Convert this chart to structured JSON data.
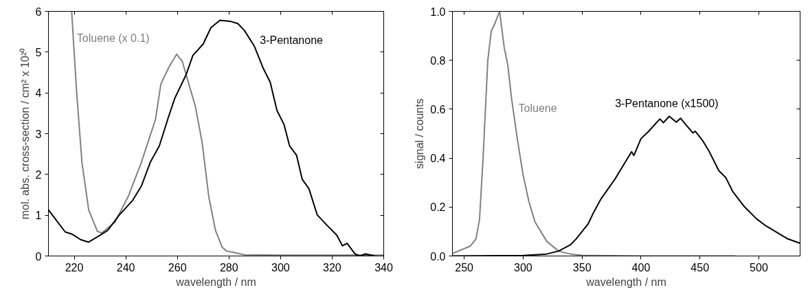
{
  "chart_data": [
    {
      "type": "line",
      "xlabel": "wavelength / nm",
      "ylabel": "mol. abs. cross-section / cm² x 10²⁰",
      "xlim": [
        210,
        340
      ],
      "ylim": [
        0,
        6
      ],
      "xticks": [
        220,
        240,
        260,
        280,
        300,
        320,
        340
      ],
      "yticks": [
        0,
        1,
        2,
        3,
        4,
        5,
        6
      ],
      "grid": false,
      "series": [
        {
          "name": "Toluene (x 0.1)",
          "color": "#808080",
          "x": [
            219,
            220.9,
            223,
            225.6,
            229,
            230.7,
            235.8,
            241,
            246,
            251.5,
            253.6,
            256.7,
            259.7,
            261.9,
            267,
            269.6,
            272.2,
            274.8,
            277.4,
            279.1,
            281.7,
            286,
            300,
            320,
            340
          ],
          "values": [
            6.0,
            4.05,
            2.29,
            1.13,
            0.6,
            0.57,
            0.83,
            1.47,
            2.29,
            3.35,
            4.22,
            4.63,
            4.95,
            4.77,
            3.66,
            2.78,
            1.44,
            0.62,
            0.21,
            0.12,
            0.09,
            0.03,
            0.02,
            0.02,
            0.02
          ]
        },
        {
          "name": "3-Pentanone",
          "color": "#000000",
          "x": [
            210,
            216.5,
            219,
            222.5,
            225.5,
            229,
            233,
            237.4,
            242.6,
            246,
            249.5,
            253,
            256.5,
            259,
            263.4,
            266,
            270,
            273,
            276.5,
            280.8,
            283.4,
            286,
            289.8,
            293.3,
            296,
            298.6,
            301.3,
            303.5,
            306.2,
            308.4,
            311,
            314.2,
            318.2,
            321.8,
            324,
            325.8,
            328.9,
            330.7,
            333,
            336.5
          ],
          "values": [
            1.13,
            0.59,
            0.54,
            0.4,
            0.34,
            0.47,
            0.63,
            1.0,
            1.36,
            1.71,
            2.3,
            2.7,
            3.4,
            3.87,
            4.45,
            4.92,
            5.2,
            5.6,
            5.78,
            5.75,
            5.7,
            5.53,
            5.15,
            4.6,
            4.26,
            3.57,
            3.23,
            2.7,
            2.47,
            1.88,
            1.65,
            1.01,
            0.74,
            0.51,
            0.25,
            0.31,
            0.05,
            0,
            0.05,
            0
          ]
        }
      ]
    },
    {
      "type": "line",
      "xlabel": "wavelength / nm",
      "ylabel": "signal / counts",
      "xlim": [
        240,
        535
      ],
      "ylim": [
        0,
        1.0
      ],
      "xticks": [
        250,
        300,
        350,
        400,
        450,
        500
      ],
      "yticks": [
        {
          "value": 0,
          "label": "0.0"
        },
        0.2,
        0.4,
        0.6,
        0.8,
        {
          "value": 1.0,
          "label": "1.0"
        }
      ],
      "grid": false,
      "series": [
        {
          "name": "Toluene",
          "color": "#808080",
          "x": [
            240,
            255,
            260,
            263,
            266,
            270,
            273,
            276,
            280,
            284,
            287,
            290,
            295,
            300,
            305,
            310,
            320,
            330,
            340,
            350,
            400,
            480
          ],
          "values": [
            0.01,
            0.04,
            0.07,
            0.15,
            0.4,
            0.8,
            0.92,
            0.95,
            1.0,
            0.85,
            0.78,
            0.65,
            0.48,
            0.33,
            0.22,
            0.14,
            0.06,
            0.02,
            0.008,
            0.003,
            0.0,
            0.0
          ]
        },
        {
          "name": "3-Pentanone (x1500)",
          "color": "#000000",
          "x": [
            240,
            300,
            320,
            330,
            340,
            345,
            350,
            355,
            360,
            366,
            378,
            392,
            394,
            400,
            406,
            416,
            419,
            424,
            430,
            433.6,
            438,
            444,
            446,
            452,
            458,
            466,
            472,
            478,
            488,
            498,
            506,
            514,
            524,
            535
          ],
          "values": [
            0,
            0.002,
            0.008,
            0.02,
            0.045,
            0.07,
            0.1,
            0.13,
            0.18,
            0.233,
            0.315,
            0.426,
            0.411,
            0.48,
            0.507,
            0.56,
            0.545,
            0.571,
            0.547,
            0.563,
            0.537,
            0.503,
            0.51,
            0.474,
            0.426,
            0.349,
            0.32,
            0.262,
            0.2,
            0.152,
            0.123,
            0.1,
            0.071,
            0.052
          ]
        }
      ]
    }
  ]
}
